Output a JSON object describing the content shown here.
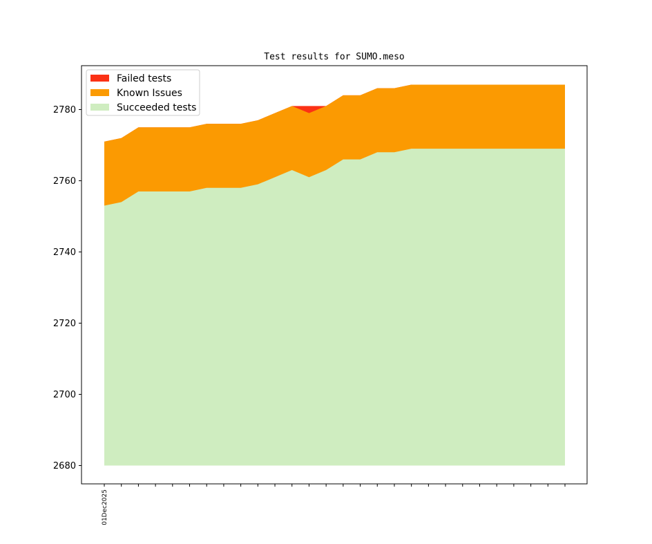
{
  "chart_data": {
    "type": "area",
    "title": "Test results for SUMO.meso",
    "xlabel": "",
    "ylabel": "",
    "ylim": [
      2680,
      2792
    ],
    "yticks": [
      2680,
      2700,
      2720,
      2740,
      2760,
      2780
    ],
    "x_tick_count": 28,
    "x_tick_labels": [
      "01Dec2025"
    ],
    "stacked": true,
    "baseline": 2680,
    "legend_position": "top-left",
    "grid": false,
    "series": [
      {
        "name": "Succeeded tests",
        "color": "#cfedc0",
        "cumulative_top": [
          2753,
          2754,
          2757,
          2757,
          2757,
          2757,
          2758,
          2758,
          2758,
          2759,
          2761,
          2763,
          2761,
          2763,
          2766,
          2766,
          2768,
          2768,
          2769,
          2769,
          2769,
          2769,
          2769,
          2769,
          2769,
          2769,
          2769,
          2769
        ]
      },
      {
        "name": "Known Issues",
        "color": "#fb9a02",
        "cumulative_top": [
          2771,
          2772,
          2775,
          2775,
          2775,
          2775,
          2776,
          2776,
          2776,
          2777,
          2779,
          2781,
          2779,
          2781,
          2784,
          2784,
          2786,
          2786,
          2787,
          2787,
          2787,
          2787,
          2787,
          2787,
          2787,
          2787,
          2787,
          2787
        ]
      },
      {
        "name": "Failed tests",
        "color": "#fb3115",
        "cumulative_top": [
          2771,
          2772,
          2775,
          2775,
          2775,
          2775,
          2776,
          2776,
          2776,
          2777,
          2779,
          2781,
          2781,
          2781,
          2784,
          2784,
          2786,
          2786,
          2787,
          2787,
          2787,
          2787,
          2787,
          2787,
          2787,
          2787,
          2787,
          2787
        ]
      }
    ]
  }
}
